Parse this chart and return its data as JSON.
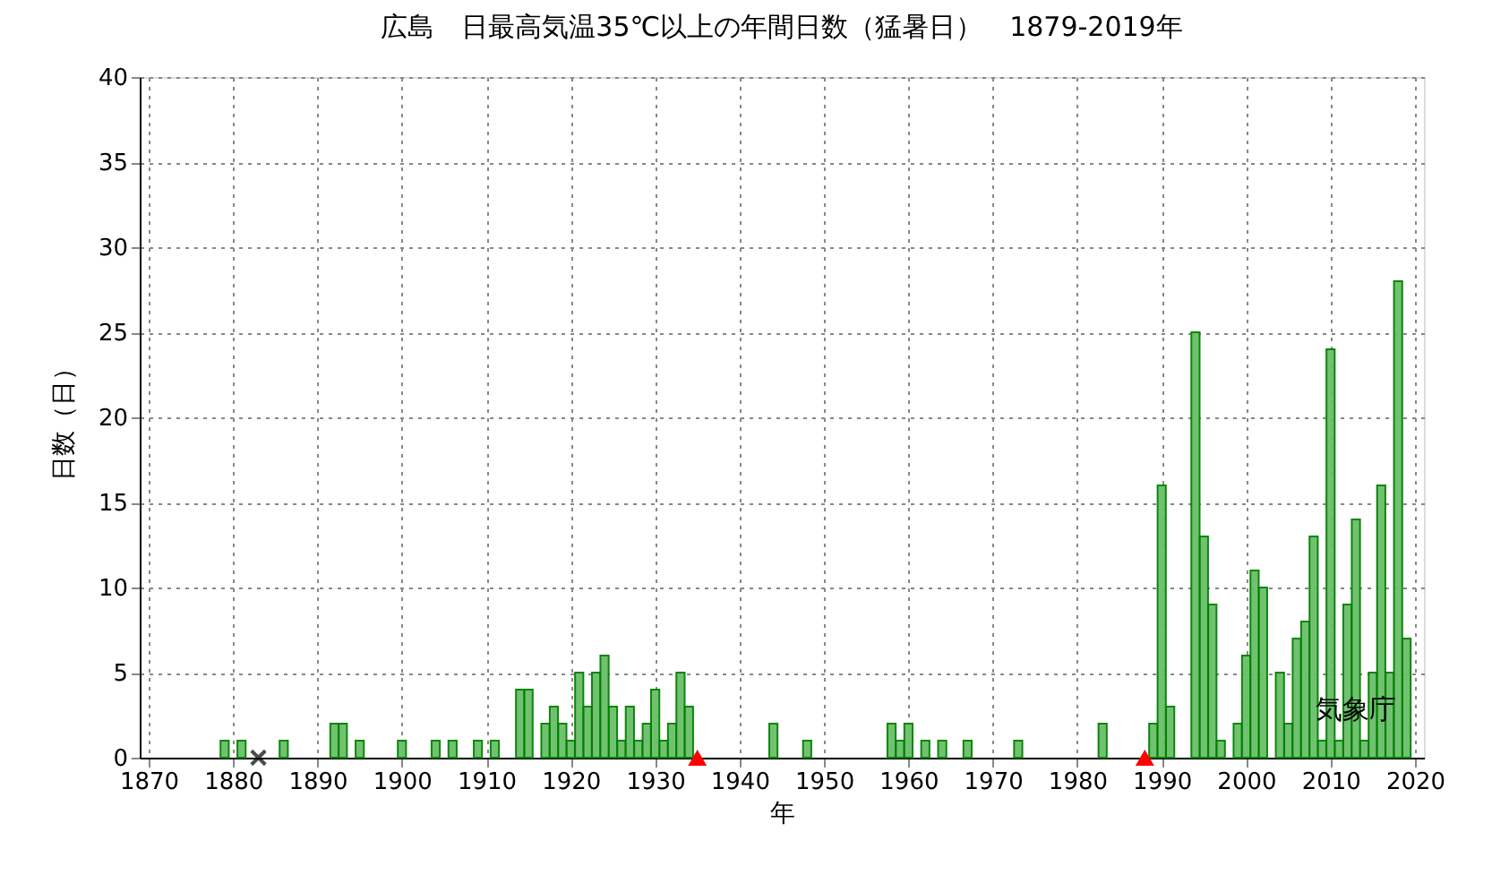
{
  "chart_data": {
    "type": "bar",
    "title": "広島　日最高気温35℃以上の年間日数（猛暑日）　1879-2019年",
    "xlabel": "年",
    "ylabel": "日数（日）",
    "xlim": [
      1870,
      2020
    ],
    "xticks": [
      1870,
      1880,
      1890,
      1900,
      1910,
      1920,
      1930,
      1940,
      1950,
      1960,
      1970,
      1980,
      1990,
      2000,
      2010,
      2020
    ],
    "ylim": [
      0,
      40
    ],
    "yticks": [
      0,
      5,
      10,
      15,
      20,
      25,
      30,
      35,
      40
    ],
    "grid": true,
    "annotations": [
      {
        "text": "気象庁",
        "x": 2013,
        "y": 2
      }
    ],
    "series": [
      {
        "color": "#6abf69",
        "x": [
          1879,
          1881,
          1886,
          1892,
          1893,
          1895,
          1900,
          1904,
          1906,
          1909,
          1911,
          1914,
          1915,
          1917,
          1918,
          1919,
          1920,
          1921,
          1922,
          1923,
          1924,
          1925,
          1926,
          1927,
          1928,
          1929,
          1930,
          1931,
          1932,
          1933,
          1934,
          1944,
          1948,
          1958,
          1959,
          1960,
          1962,
          1964,
          1967,
          1973,
          1983,
          1989,
          1990,
          1991,
          1994,
          1995,
          1996,
          1997,
          1999,
          2000,
          2001,
          2002,
          2004,
          2005,
          2006,
          2007,
          2008,
          2009,
          2010,
          2011,
          2012,
          2013,
          2014,
          2015,
          2016,
          2017,
          2018,
          2019
        ],
        "values": [
          1,
          1,
          1,
          2,
          2,
          1,
          1,
          1,
          1,
          1,
          1,
          4,
          4,
          2,
          3,
          2,
          1,
          5,
          3,
          5,
          6,
          3,
          1,
          3,
          1,
          2,
          4,
          1,
          2,
          5,
          3,
          2,
          1,
          2,
          1,
          2,
          1,
          1,
          1,
          1,
          2,
          2,
          16,
          3,
          25,
          13,
          9,
          1,
          2,
          6,
          11,
          10,
          5,
          2,
          7,
          8,
          13,
          1,
          24,
          1,
          9,
          14,
          1,
          5,
          16,
          5,
          28,
          7
        ]
      },
      {
        "type": "scatter",
        "marker": "cross",
        "color": "#000000",
        "x": [
          1883
        ],
        "values": [
          0
        ]
      },
      {
        "type": "scatter",
        "marker": "triangle",
        "color": "#ff0000",
        "x": [
          1935,
          1988
        ],
        "values": [
          0,
          0
        ]
      }
    ]
  }
}
